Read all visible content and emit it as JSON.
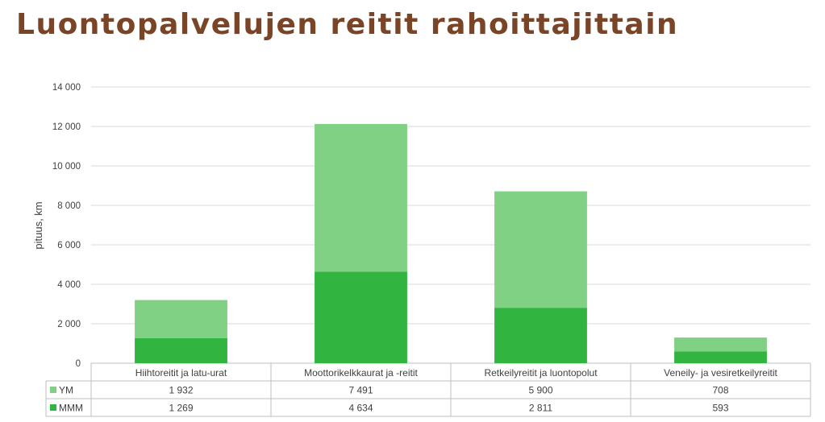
{
  "chart_data": {
    "type": "bar",
    "stacked": true,
    "title": "Luontopalvelujen reitit rahoittajittain",
    "ylabel": "pituus, km",
    "ylim": [
      0,
      14000
    ],
    "yticks": [
      0,
      2000,
      4000,
      6000,
      8000,
      10000,
      12000,
      14000
    ],
    "ytick_labels": [
      "0",
      "2 000",
      "4 000",
      "6 000",
      "8 000",
      "10 000",
      "12 000",
      "14 000"
    ],
    "grid": true,
    "legend": "data-table",
    "categories": [
      "Hiihtoreitit ja latu-urat",
      "Moottorikelkkaurat ja -reitit",
      "Retkeilyreitit ja luontopolut",
      "Veneily- ja vesiretkeilyreitit"
    ],
    "series": [
      {
        "name": "MMM",
        "color": "#32b441",
        "values": [
          1269,
          4634,
          2811,
          593
        ],
        "labels": [
          "1 269",
          "4 634",
          "2 811",
          "593"
        ]
      },
      {
        "name": "YM",
        "color": "#80d184",
        "values": [
          1932,
          7491,
          5900,
          708
        ],
        "labels": [
          "1 932",
          "7 491",
          "5 900",
          "708"
        ]
      }
    ]
  }
}
